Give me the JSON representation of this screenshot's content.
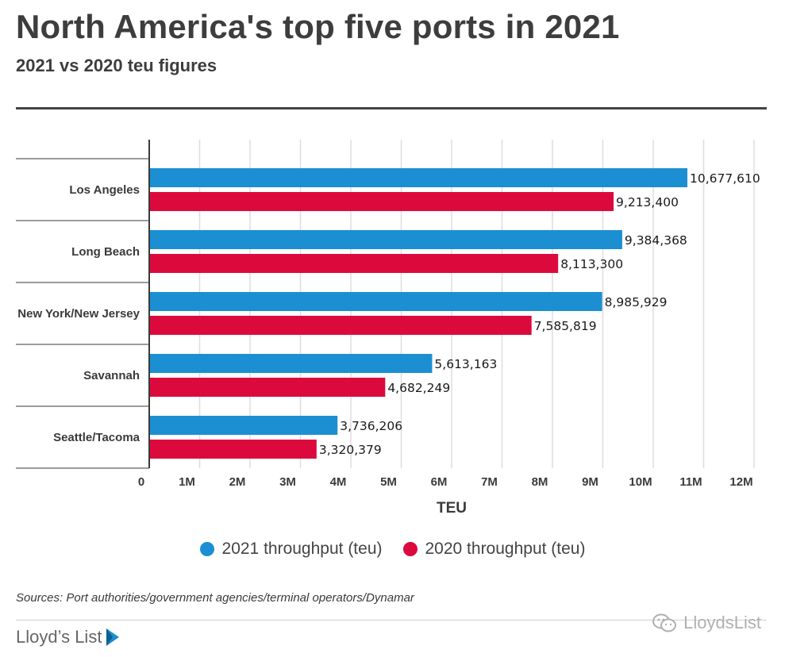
{
  "header": {
    "title": "North America's top five ports in 2021",
    "subtitle": "2021 vs 2020 teu figures"
  },
  "chart_data": {
    "type": "bar",
    "orientation": "horizontal",
    "categories": [
      "Los Angeles",
      "Long Beach",
      "New York/New Jersey",
      "Savannah",
      "Seattle/Tacoma"
    ],
    "series": [
      {
        "name": "2021 throughput (teu)",
        "color": "#1b8fd2",
        "values": [
          10677610,
          9384368,
          8985929,
          5613163,
          3736206
        ],
        "labels": [
          "10,677,610",
          "9,384,368",
          "8,985,929",
          "5,613,163",
          "3,736,206"
        ]
      },
      {
        "name": "2020 throughput (teu)",
        "color": "#dc0a3c",
        "values": [
          9213400,
          8113300,
          7585819,
          4682249,
          3320379
        ],
        "labels": [
          "9,213,400",
          "8,113,300",
          "7,585,819",
          "4,682,249",
          "3,320,379"
        ]
      }
    ],
    "xlabel": "TEU",
    "xlim": [
      0,
      12000000
    ],
    "xticks": [
      0,
      1000000,
      2000000,
      3000000,
      4000000,
      5000000,
      6000000,
      7000000,
      8000000,
      9000000,
      10000000,
      11000000,
      12000000
    ],
    "xtick_labels": [
      "0",
      "1M",
      "2M",
      "3M",
      "4M",
      "5M",
      "6M",
      "7M",
      "8M",
      "9M",
      "10M",
      "11M",
      "12M"
    ],
    "grid": "vertical",
    "legend": "bottom"
  },
  "footer": {
    "source": "Sources: Port authorities/government agencies/terminal operators/Dynamar",
    "brand": "Lloyd’s List",
    "watermark": "LloydsList"
  }
}
